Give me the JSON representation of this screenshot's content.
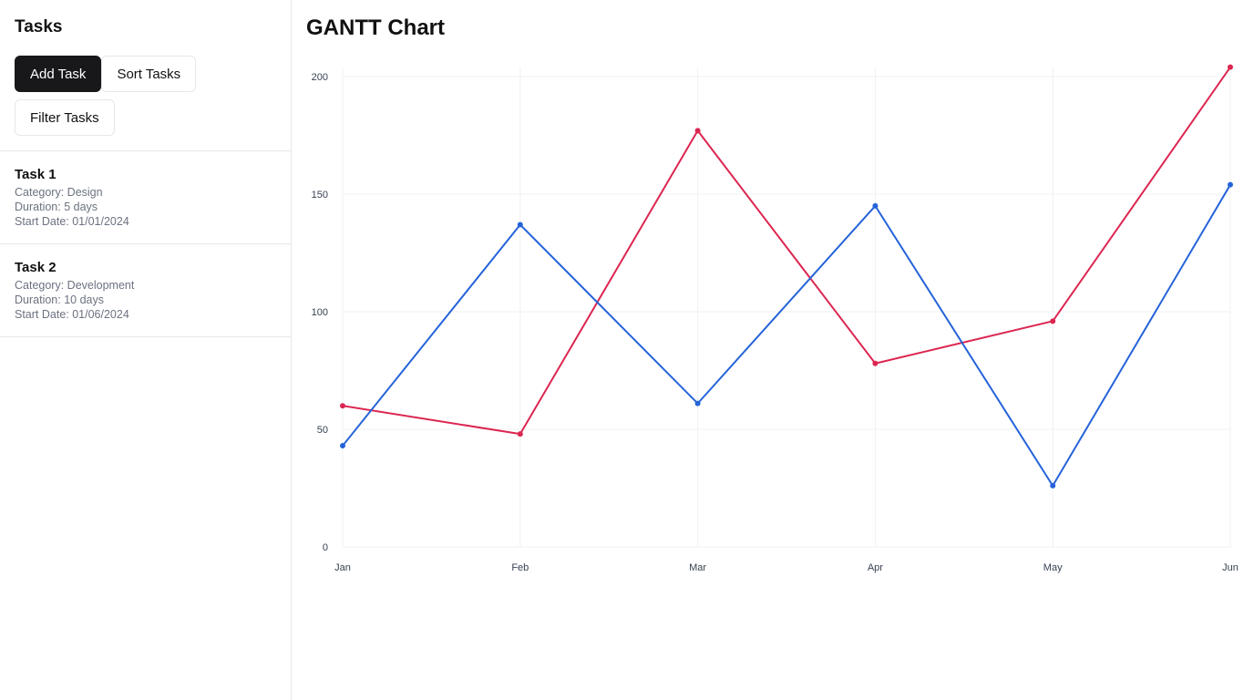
{
  "sidebar": {
    "title": "Tasks",
    "buttons": {
      "add": "Add Task",
      "sort": "Sort Tasks",
      "filter": "Filter Tasks"
    },
    "tasks": [
      {
        "name": "Task 1",
        "category": "Category: Design",
        "duration": "Duration: 5 days",
        "start": "Start Date: 01/01/2024"
      },
      {
        "name": "Task 2",
        "category": "Category: Development",
        "duration": "Duration: 10 days",
        "start": "Start Date: 01/06/2024"
      }
    ]
  },
  "main": {
    "title": "GANTT Chart"
  },
  "chart_data": {
    "type": "line",
    "categories": [
      "Jan",
      "Feb",
      "Mar",
      "Apr",
      "May",
      "Jun"
    ],
    "series": [
      {
        "color": "#dc2650",
        "values": [
          60,
          48,
          177,
          78,
          96,
          204
        ]
      },
      {
        "color": "#2563d9",
        "values": [
          43,
          137,
          61,
          145,
          26,
          154
        ]
      }
    ],
    "ylim": [
      0,
      200
    ],
    "yticks": [
      0,
      50,
      100,
      150,
      200
    ],
    "grid": true
  }
}
